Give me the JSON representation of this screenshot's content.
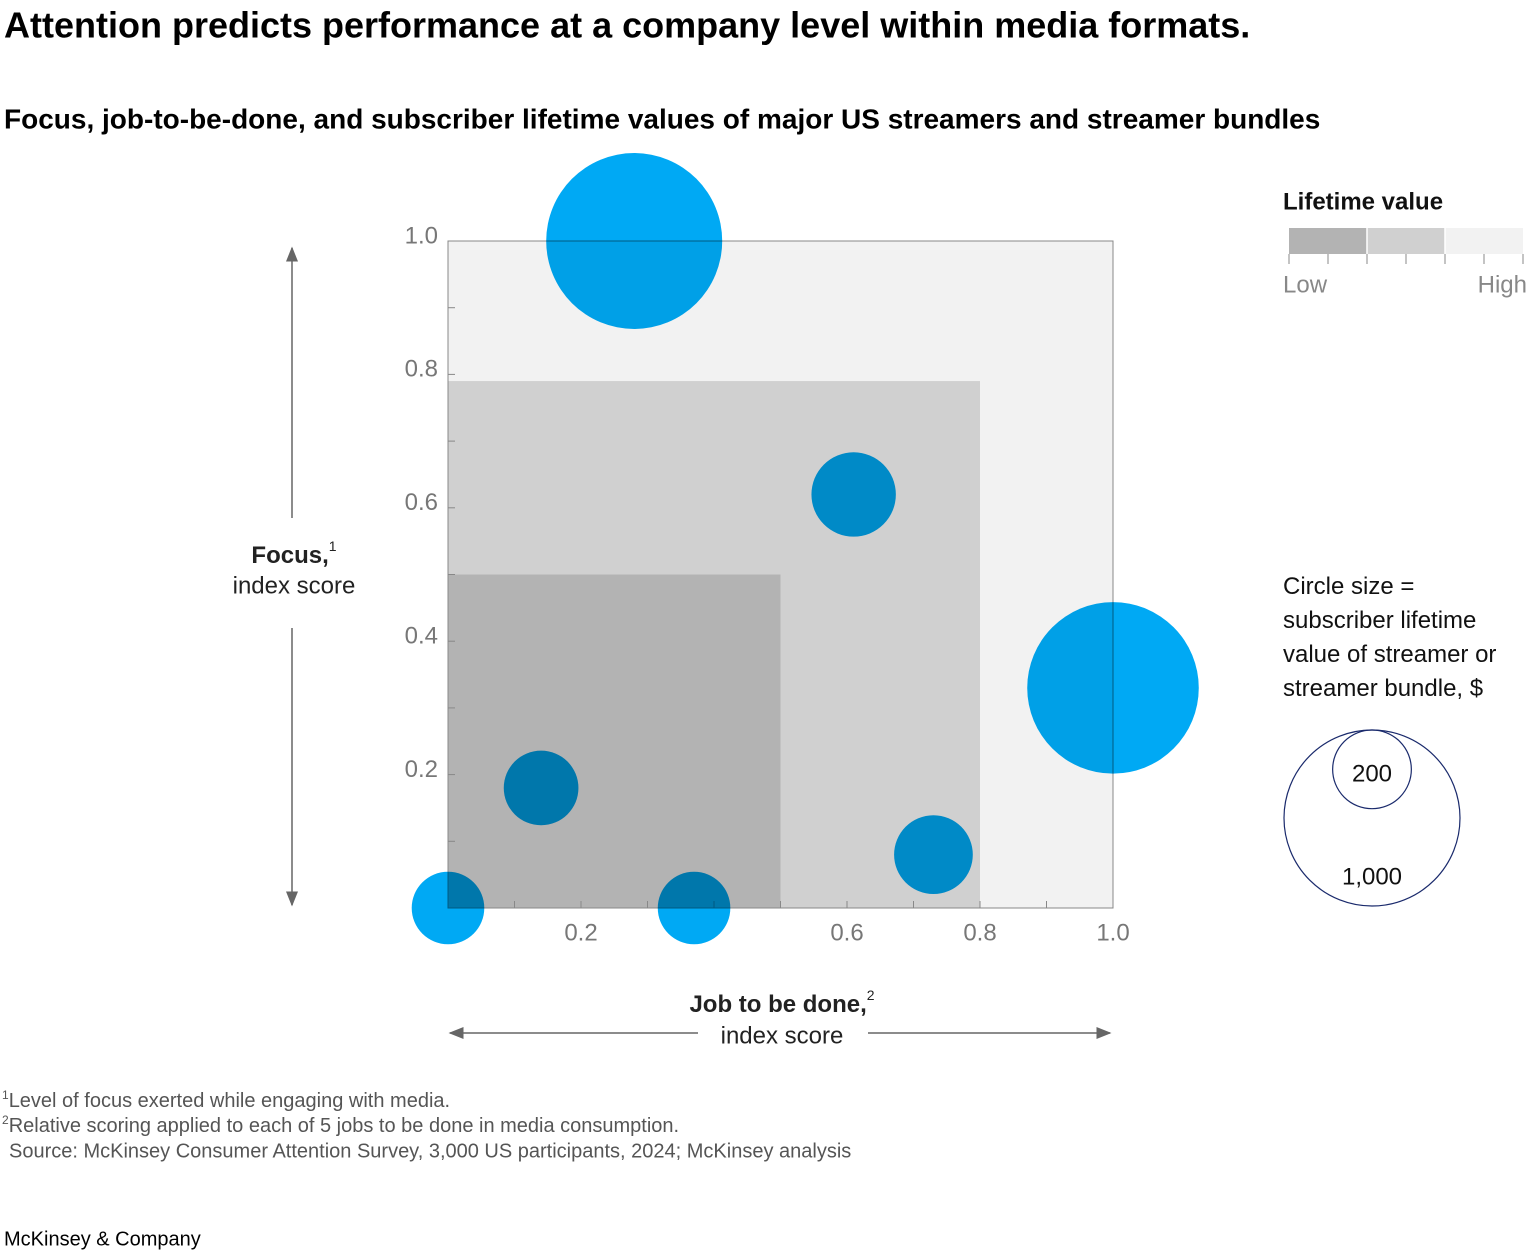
{
  "chart_data": {
    "type": "scatter",
    "title": "Attention predicts performance at a company level within media formats.",
    "subtitle": "Focus, job-to-be-done, and subscriber lifetime values of major US streamers and streamer bundles",
    "x_label": "Job to be done,",
    "x_label_note": "2",
    "x_label_sub": "index score",
    "y_label": "Focus,",
    "y_label_note": "1",
    "y_label_sub": "index score",
    "xlim": [
      0,
      1
    ],
    "ylim": [
      0,
      1
    ],
    "xticks": [
      0.2,
      0.6,
      0.8,
      {
        "value": 1,
        "label": "1.0"
      }
    ],
    "xminor_ticks": [
      0.1,
      0.3,
      0.4,
      0.5,
      0.7,
      0.9
    ],
    "yticks": [
      0.2,
      0.4,
      0.6,
      0.8,
      {
        "value": 1,
        "label": "1.0"
      }
    ],
    "yminor_ticks": [
      0.1,
      0.3,
      0.5,
      0.7,
      0.9
    ],
    "regions": [
      {
        "x": [
          0,
          1
        ],
        "y": [
          0,
          1
        ],
        "color": "#f2f2f2"
      },
      {
        "x": [
          0,
          0.8
        ],
        "y": [
          0,
          0.79
        ],
        "color": "#d0d0d0"
      },
      {
        "x": [
          0,
          0.5
        ],
        "y": [
          0,
          0.5
        ],
        "color": "#b3b3b3"
      }
    ],
    "series": [
      {
        "color": "#00a9f4",
        "x": [
          0.28,
          0.61,
          1.0,
          0.14,
          0.0,
          0.37,
          0.73
        ],
        "values": [
          1.0,
          0.62,
          0.33,
          0.18,
          0.0,
          0.0,
          0.08
        ],
        "sizes": [
          1000,
          230,
          950,
          180,
          170,
          170,
          200
        ]
      }
    ],
    "color_legend": {
      "title": "Lifetime value",
      "low": "Low",
      "high": "High",
      "colors": [
        "#b3b3b3",
        "#d0d0d0",
        "#f2f2f2"
      ]
    },
    "size_legend": {
      "text": "Circle size = subscriber lifetime value of streamer or streamer bundle, $",
      "values": [
        200,
        {
          "value": 1000,
          "label": "1,000"
        }
      ]
    },
    "footnotes": [
      {
        "mark": "1",
        "text": "Level of focus exerted while engaging with media."
      },
      {
        "mark": "2",
        "text": "Relative scoring applied to each of 5 jobs to be done in media consumption."
      }
    ],
    "source": "Source: McKinsey Consumer Attention Survey, 3,000 US participants, 2024; McKinsey analysis",
    "brand": "McKinsey & Company"
  }
}
